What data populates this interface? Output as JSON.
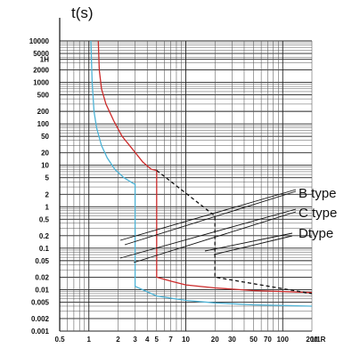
{
  "chart_data": {
    "type": "line",
    "title": "",
    "ylabel": "t(s)",
    "xlabel": "1/1R",
    "y_scale": "log",
    "x_scale": "log",
    "ylim": [
      0.001,
      10000
    ],
    "xlim": [
      0.5,
      200
    ],
    "grid": true,
    "y_ticks": [
      {
        "value": 10000,
        "label": "10000"
      },
      {
        "value": 5000,
        "label": "5000"
      },
      {
        "value": 3600,
        "label": "1H"
      },
      {
        "value": 2000,
        "label": "2000"
      },
      {
        "value": 1000,
        "label": "1000"
      },
      {
        "value": 500,
        "label": "500"
      },
      {
        "value": 200,
        "label": "200"
      },
      {
        "value": 100,
        "label": "100"
      },
      {
        "value": 50,
        "label": "50"
      },
      {
        "value": 20,
        "label": "20"
      },
      {
        "value": 10,
        "label": "10"
      },
      {
        "value": 5,
        "label": "5"
      },
      {
        "value": 2,
        "label": "2"
      },
      {
        "value": 1,
        "label": "1"
      },
      {
        "value": 0.5,
        "label": "0.5"
      },
      {
        "value": 0.2,
        "label": "0.2"
      },
      {
        "value": 0.1,
        "label": "0.1"
      },
      {
        "value": 0.05,
        "label": "0.05"
      },
      {
        "value": 0.02,
        "label": "0.02"
      },
      {
        "value": 0.01,
        "label": "0.01"
      },
      {
        "value": 0.005,
        "label": "0.005"
      },
      {
        "value": 0.002,
        "label": "0.002"
      },
      {
        "value": 0.001,
        "label": "0.001"
      }
    ],
    "x_ticks": [
      {
        "value": 0.5,
        "label": "0.5"
      },
      {
        "value": 1,
        "label": "1"
      },
      {
        "value": 2,
        "label": "2"
      },
      {
        "value": 3,
        "label": "3"
      },
      {
        "value": 4,
        "label": "4"
      },
      {
        "value": 5,
        "label": "5"
      },
      {
        "value": 7,
        "label": "7"
      },
      {
        "value": 10,
        "label": "10"
      },
      {
        "value": 20,
        "label": "20"
      },
      {
        "value": 30,
        "label": "30"
      },
      {
        "value": 50,
        "label": "50"
      },
      {
        "value": 70,
        "label": "70"
      },
      {
        "value": 100,
        "label": "100"
      },
      {
        "value": 200,
        "label": "200"
      }
    ],
    "series": [
      {
        "name": "B type",
        "color": "#4db3d6",
        "style": "solid",
        "points": [
          [
            1.05,
            10000
          ],
          [
            1.08,
            1000
          ],
          [
            1.13,
            200
          ],
          [
            1.2,
            80
          ],
          [
            1.35,
            30
          ],
          [
            1.55,
            15
          ],
          [
            1.85,
            8
          ],
          [
            2.3,
            5
          ],
          [
            2.9,
            3.6
          ],
          [
            3,
            3.5
          ],
          [
            3,
            0.012
          ],
          [
            5,
            0.007
          ],
          [
            10,
            0.0055
          ],
          [
            20,
            0.0048
          ],
          [
            50,
            0.0043
          ],
          [
            200,
            0.004
          ]
        ]
      },
      {
        "name": "C type",
        "color": "#cc2a2a",
        "style": "solid",
        "points": [
          [
            1.25,
            10000
          ],
          [
            1.28,
            2000
          ],
          [
            1.35,
            700
          ],
          [
            1.5,
            300
          ],
          [
            1.8,
            120
          ],
          [
            2.2,
            50
          ],
          [
            2.8,
            25
          ],
          [
            3.6,
            12
          ],
          [
            4.4,
            8
          ],
          [
            5,
            7.5
          ],
          [
            5,
            0.02
          ],
          [
            7,
            0.016
          ],
          [
            10,
            0.013
          ],
          [
            20,
            0.011
          ],
          [
            50,
            0.0095
          ],
          [
            200,
            0.0085
          ]
        ]
      },
      {
        "name": "Dtype",
        "color": "#111111",
        "style": "dashed",
        "points": [
          [
            5,
            7.5
          ],
          [
            20,
            0.6
          ],
          [
            20,
            0.02
          ],
          [
            200,
            0.008
          ]
        ]
      }
    ],
    "legend": [
      "B type",
      "C type",
      "Dtype"
    ],
    "legend_position": "right"
  }
}
